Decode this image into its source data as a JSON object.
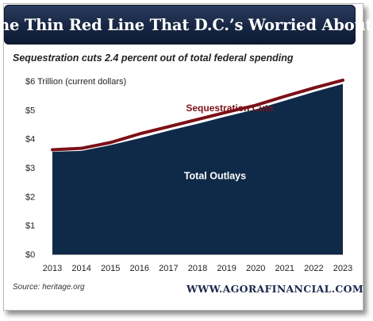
{
  "colors": {
    "outlays": "#0f2a48",
    "sequestration": "#7b1118",
    "title_bg": "#172643",
    "brand": "#1b2a4b"
  },
  "header": {
    "title": "The Thin Red Line That D.C.’s Worried About",
    "subtitle": "Sequestration cuts 2.4 percent out of total federal spending"
  },
  "footer": {
    "source": "Source: heritage.org",
    "brand": "WWW.AGORAFINANCIAL.COM"
  },
  "chart_data": {
    "type": "area",
    "title": "The Thin Red Line That D.C.’s Worried About",
    "subtitle": "Sequestration cuts 2.4 percent out of total federal spending",
    "ylabel": "$6 Trillion (current dollars)",
    "xlim": [
      2013,
      2023
    ],
    "ylim": [
      0,
      6
    ],
    "grid": false,
    "x": [
      2013,
      2014,
      2015,
      2016,
      2017,
      2018,
      2019,
      2020,
      2021,
      2022,
      2023
    ],
    "x_tick_labels": [
      "2013",
      "2014",
      "2015",
      "2016",
      "2017",
      "2018",
      "2019",
      "2020",
      "2021",
      "2022",
      "2023"
    ],
    "y_tick_labels": [
      "$0",
      "$1",
      "$2",
      "$3",
      "$4",
      "$5",
      "$6 Trillion (current dollars)"
    ],
    "y_ticks": [
      0,
      1,
      2,
      3,
      4,
      5,
      6
    ],
    "series": [
      {
        "name": "Total Outlays",
        "type": "area",
        "values": [
          3.55,
          3.58,
          3.78,
          4.02,
          4.28,
          4.52,
          4.78,
          5.02,
          5.32,
          5.62,
          5.9
        ]
      },
      {
        "name": "Sequestration Cuts",
        "type": "line",
        "values": [
          3.62,
          3.67,
          3.87,
          4.17,
          4.42,
          4.67,
          4.92,
          5.16,
          5.47,
          5.76,
          6.03
        ]
      }
    ]
  }
}
